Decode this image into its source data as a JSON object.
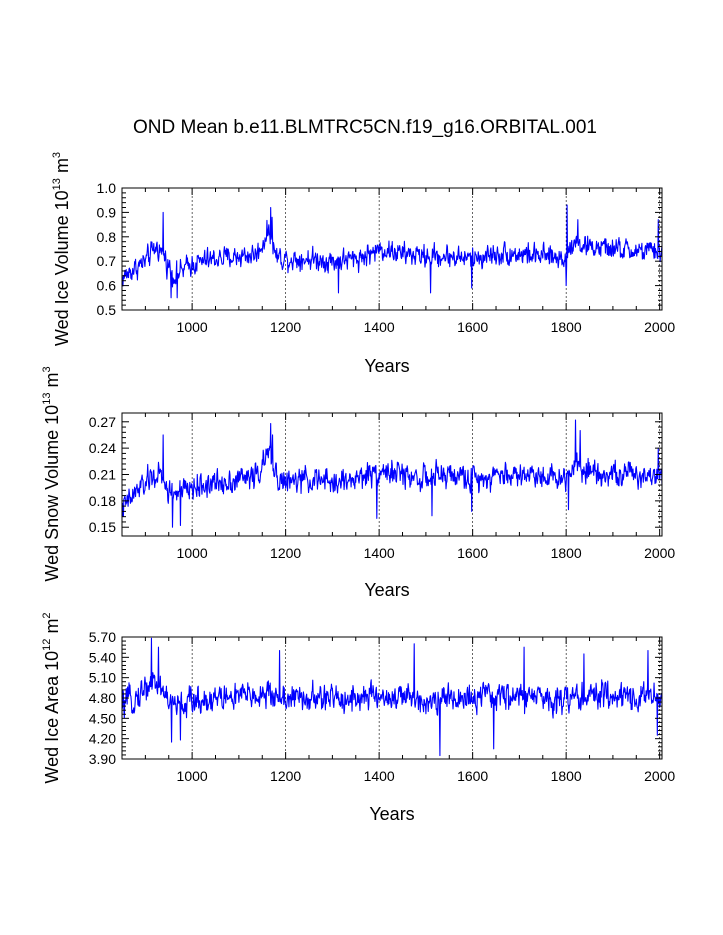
{
  "figure_title": "OND Mean b.e11.BLMTRC5CN.f19_g16.ORBITAL.001",
  "colors": {
    "series": "#0000ff",
    "axes": "#000000",
    "grid": "#000000"
  },
  "chart_data": [
    {
      "type": "line",
      "name": "wed-ice-volume",
      "xlabel": "Years",
      "ylabel": {
        "prefix": "Wed Ice Volume 10",
        "exp": "13",
        "unit": " m",
        "unit_exp": "3"
      },
      "xlim": [
        850,
        2005
      ],
      "ylim": [
        0.5,
        1.0
      ],
      "xticks": [
        "1000",
        "1200",
        "1400",
        "1600",
        "1800",
        "2000"
      ],
      "xtick_values": [
        1000,
        1200,
        1400,
        1600,
        1800,
        2000
      ],
      "yticks": [
        "0.5",
        "0.6",
        "0.7",
        "0.8",
        "0.9",
        "1.0"
      ],
      "ytick_values": [
        0.5,
        0.6,
        0.7,
        0.8,
        0.9,
        1.0
      ],
      "grid_x": [
        1000,
        1200,
        1400,
        1600,
        1800,
        2000
      ],
      "series": [
        {
          "name": "Wed Ice Volume",
          "mean": 0.72,
          "noise_amp": 0.045,
          "anchors": [
            [
              850,
              0.63
            ],
            [
              870,
              0.66
            ],
            [
              900,
              0.7
            ],
            [
              925,
              0.76
            ],
            [
              940,
              0.72
            ],
            [
              960,
              0.64
            ],
            [
              985,
              0.67
            ],
            [
              1000,
              0.69
            ],
            [
              1050,
              0.71
            ],
            [
              1100,
              0.72
            ],
            [
              1140,
              0.73
            ],
            [
              1165,
              0.83
            ],
            [
              1180,
              0.72
            ],
            [
              1200,
              0.71
            ],
            [
              1250,
              0.71
            ],
            [
              1300,
              0.7
            ],
            [
              1350,
              0.71
            ],
            [
              1380,
              0.73
            ],
            [
              1400,
              0.75
            ],
            [
              1450,
              0.73
            ],
            [
              1500,
              0.72
            ],
            [
              1550,
              0.72
            ],
            [
              1600,
              0.71
            ],
            [
              1650,
              0.73
            ],
            [
              1700,
              0.73
            ],
            [
              1750,
              0.72
            ],
            [
              1800,
              0.71
            ],
            [
              1815,
              0.79
            ],
            [
              1840,
              0.76
            ],
            [
              1900,
              0.75
            ],
            [
              1950,
              0.74
            ],
            [
              2005,
              0.74
            ]
          ],
          "spikes": [
            [
              938,
              0.9
            ],
            [
              955,
              0.55
            ],
            [
              968,
              0.55
            ],
            [
              1168,
              0.92
            ],
            [
              1171,
              0.88
            ],
            [
              1313,
              0.57
            ],
            [
              1510,
              0.57
            ],
            [
              1598,
              0.59
            ],
            [
              1802,
              0.93
            ],
            [
              1825,
              0.87
            ],
            [
              1997,
              0.87
            ],
            [
              1800,
              0.6
            ]
          ]
        }
      ]
    },
    {
      "type": "line",
      "name": "wed-snow-volume",
      "xlabel": "Years",
      "ylabel": {
        "prefix": "Wed Snow Volume 10",
        "exp": "13",
        "unit": " m",
        "unit_exp": "3"
      },
      "xlim": [
        850,
        2005
      ],
      "ylim": [
        0.14,
        0.28
      ],
      "xticks": [
        "1000",
        "1200",
        "1400",
        "1600",
        "1800",
        "2000"
      ],
      "xtick_values": [
        1000,
        1200,
        1400,
        1600,
        1800,
        2000
      ],
      "yticks": [
        "0.15",
        "0.18",
        "0.21",
        "0.24",
        "0.27"
      ],
      "ytick_values": [
        0.15,
        0.18,
        0.21,
        0.24,
        0.27
      ],
      "grid_x": [
        1000,
        1200,
        1400,
        1600,
        1800,
        2000
      ],
      "series": [
        {
          "name": "Wed Snow Volume",
          "mean": 0.205,
          "noise_amp": 0.014,
          "anchors": [
            [
              850,
              0.17
            ],
            [
              880,
              0.19
            ],
            [
              910,
              0.205
            ],
            [
              930,
              0.21
            ],
            [
              950,
              0.19
            ],
            [
              975,
              0.19
            ],
            [
              1000,
              0.195
            ],
            [
              1050,
              0.2
            ],
            [
              1100,
              0.205
            ],
            [
              1140,
              0.21
            ],
            [
              1165,
              0.235
            ],
            [
              1185,
              0.205
            ],
            [
              1200,
              0.2
            ],
            [
              1250,
              0.205
            ],
            [
              1300,
              0.2
            ],
            [
              1350,
              0.205
            ],
            [
              1400,
              0.215
            ],
            [
              1450,
              0.21
            ],
            [
              1500,
              0.205
            ],
            [
              1550,
              0.21
            ],
            [
              1600,
              0.205
            ],
            [
              1650,
              0.21
            ],
            [
              1700,
              0.21
            ],
            [
              1750,
              0.21
            ],
            [
              1800,
              0.205
            ],
            [
              1815,
              0.225
            ],
            [
              1850,
              0.215
            ],
            [
              1900,
              0.21
            ],
            [
              1950,
              0.21
            ],
            [
              2005,
              0.21
            ]
          ],
          "spikes": [
            [
              938,
              0.255
            ],
            [
              958,
              0.15
            ],
            [
              975,
              0.152
            ],
            [
              1168,
              0.268
            ],
            [
              1172,
              0.255
            ],
            [
              1395,
              0.16
            ],
            [
              1513,
              0.163
            ],
            [
              1598,
              0.168
            ],
            [
              1820,
              0.272
            ],
            [
              1830,
              0.26
            ],
            [
              1997,
              0.24
            ],
            [
              1805,
              0.17
            ]
          ]
        }
      ]
    },
    {
      "type": "line",
      "name": "wed-ice-area",
      "xlabel": "Years",
      "ylabel": {
        "prefix": "Wed Ice Area 10",
        "exp": "12",
        "unit": " m",
        "unit_exp": "2"
      },
      "xlim": [
        850,
        2005
      ],
      "ylim": [
        3.9,
        5.7
      ],
      "xticks": [
        "1000",
        "1200",
        "1400",
        "1600",
        "1800",
        "2000"
      ],
      "xtick_values": [
        1000,
        1200,
        1400,
        1600,
        1800,
        2000
      ],
      "yticks": [
        "3.90",
        "4.20",
        "4.50",
        "4.80",
        "5.10",
        "5.40",
        "5.70"
      ],
      "ytick_values": [
        3.9,
        4.2,
        4.5,
        4.8,
        5.1,
        5.4,
        5.7
      ],
      "grid_x": [
        1000,
        1200,
        1400,
        1600,
        1800,
        2000
      ],
      "series": [
        {
          "name": "Wed Ice Area",
          "mean": 4.8,
          "noise_amp": 0.2,
          "anchors": [
            [
              850,
              4.7
            ],
            [
              880,
              4.8
            ],
            [
              900,
              4.95
            ],
            [
              915,
              5.05
            ],
            [
              935,
              4.95
            ],
            [
              955,
              4.7
            ],
            [
              980,
              4.7
            ],
            [
              1000,
              4.75
            ],
            [
              1050,
              4.8
            ],
            [
              1100,
              4.82
            ],
            [
              1150,
              4.85
            ],
            [
              1200,
              4.8
            ],
            [
              1250,
              4.78
            ],
            [
              1300,
              4.8
            ],
            [
              1350,
              4.8
            ],
            [
              1400,
              4.82
            ],
            [
              1450,
              4.8
            ],
            [
              1500,
              4.78
            ],
            [
              1550,
              4.78
            ],
            [
              1600,
              4.8
            ],
            [
              1650,
              4.82
            ],
            [
              1700,
              4.82
            ],
            [
              1750,
              4.8
            ],
            [
              1800,
              4.8
            ],
            [
              1850,
              4.82
            ],
            [
              1900,
              4.84
            ],
            [
              1950,
              4.82
            ],
            [
              2005,
              4.82
            ]
          ],
          "spikes": [
            [
              913,
              5.68
            ],
            [
              928,
              5.55
            ],
            [
              956,
              4.15
            ],
            [
              975,
              4.18
            ],
            [
              1187,
              5.5
            ],
            [
              1475,
              5.6
            ],
            [
              1530,
              3.95
            ],
            [
              1645,
              4.05
            ],
            [
              1710,
              5.55
            ],
            [
              1838,
              5.45
            ],
            [
              1975,
              5.5
            ],
            [
              1995,
              4.25
            ]
          ]
        }
      ]
    }
  ]
}
